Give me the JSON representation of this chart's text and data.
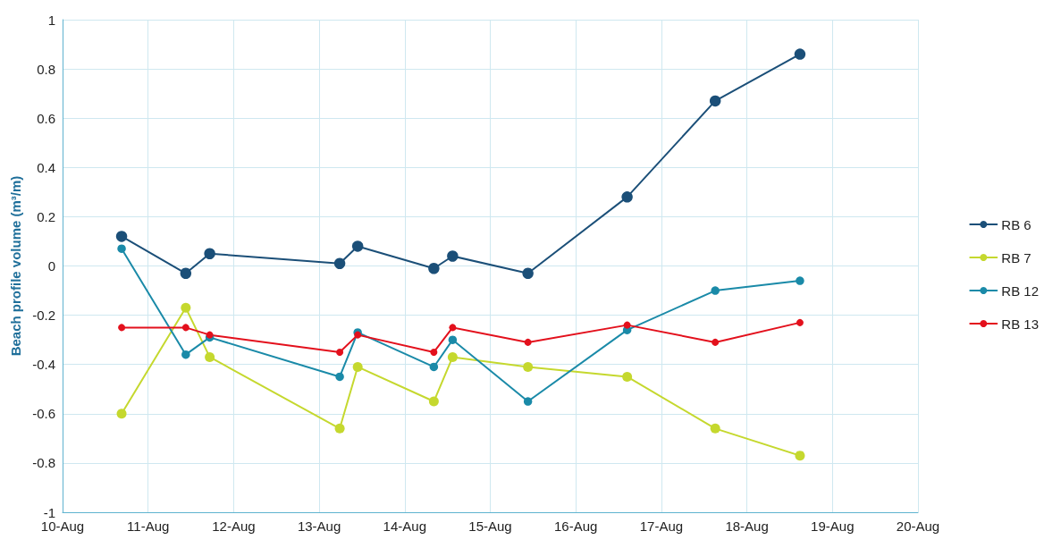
{
  "chart_data": {
    "type": "line",
    "ylabel": "Beach profile volume (m³/m)",
    "xlim": [
      "--08-10",
      "--08-20"
    ],
    "xticks": [
      {
        "value": "--08-10",
        "label": "10-Aug"
      },
      {
        "value": "--08-11",
        "label": "11-Aug"
      },
      {
        "value": "--08-12",
        "label": "12-Aug"
      },
      {
        "value": "--08-13",
        "label": "13-Aug"
      },
      {
        "value": "--08-14",
        "label": "14-Aug"
      },
      {
        "value": "--08-15",
        "label": "15-Aug"
      },
      {
        "value": "--08-16",
        "label": "16-Aug"
      },
      {
        "value": "--08-17",
        "label": "17-Aug"
      },
      {
        "value": "--08-18",
        "label": "18-Aug"
      },
      {
        "value": "--08-19",
        "label": "19-Aug"
      },
      {
        "value": "--08-20",
        "label": "20-Aug"
      }
    ],
    "ylim": [
      -1,
      1
    ],
    "yticks": [
      -1,
      -0.8,
      -0.6,
      -0.4,
      -0.2,
      0,
      0.2,
      0.4,
      0.6,
      0.8,
      1
    ],
    "x": [
      "--08-10T16:34",
      "--08-11T10:34",
      "--08-11T17:17",
      "--08-13T05:46",
      "--08-13T10:48",
      "--08-14T08:10",
      "--08-14T13:26",
      "--08-15T10:34",
      "--08-16T14:24",
      "--08-17T15:07",
      "--08-18T14:53"
    ],
    "series": [
      {
        "name": "RB 6",
        "color": "#1b4f78",
        "values": [
          0.12,
          -0.03,
          0.05,
          0.01,
          0.08,
          -0.01,
          0.04,
          -0.03,
          0.28,
          0.67,
          0.86
        ]
      },
      {
        "name": "RB 7",
        "color": "#c5d82e",
        "values": [
          -0.6,
          -0.17,
          -0.37,
          -0.66,
          -0.41,
          -0.55,
          -0.37,
          -0.41,
          -0.45,
          -0.66,
          -0.77
        ]
      },
      {
        "name": "RB 12",
        "color": "#1a8aa8",
        "values": [
          0.07,
          -0.36,
          -0.29,
          -0.45,
          -0.27,
          -0.41,
          -0.3,
          -0.55,
          -0.26,
          -0.1,
          -0.06
        ]
      },
      {
        "name": "RB 13",
        "color": "#e3101c",
        "values": [
          -0.25,
          -0.25,
          -0.28,
          -0.35,
          -0.28,
          -0.35,
          -0.25,
          -0.31,
          -0.24,
          -0.31,
          -0.23
        ]
      }
    ],
    "grid": true,
    "legend": "right",
    "marker": "circle",
    "line_style": "solid"
  }
}
